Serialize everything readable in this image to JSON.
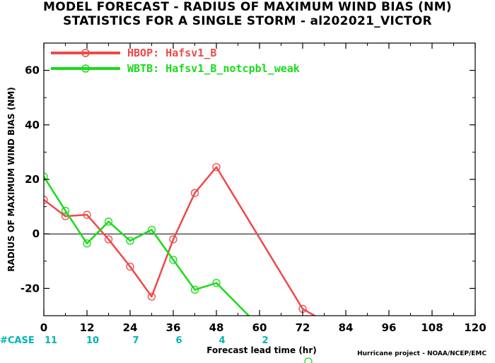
{
  "chart_data": {
    "type": "line",
    "title": "MODEL FORECAST - RADIUS OF MAXIMUM WIND BIAS (NM)",
    "subtitle": "STATISTICS FOR A SINGLE STORM - al202021_VICTOR",
    "xlabel": "Forecast lead time (hr)",
    "ylabel": "RADIUS OF MAXIMUM WIND BIAS (NM)",
    "xlim": [
      0,
      120
    ],
    "ylim": [
      -30,
      70
    ],
    "x_ticks": [
      "0",
      "12",
      "24",
      "36",
      "48",
      "60",
      "72",
      "84",
      "96",
      "108",
      "120"
    ],
    "y_ticks": [
      "60",
      "40",
      "20",
      "0",
      "-20"
    ],
    "zero_line": true,
    "legend_position": "top-left",
    "series": [
      {
        "name": "HBOP: Hafsv1_B",
        "color": "#f04848",
        "x": [
          0,
          6,
          12,
          18,
          24,
          30,
          36,
          42,
          48,
          72,
          78
        ],
        "y": [
          12.5,
          6.5,
          7,
          -2,
          -12,
          -23,
          -2,
          15,
          24.5,
          -27.5,
          -32
        ]
      },
      {
        "name": "WBTB: Hafsv1_B_notcpbl_weak",
        "color": "#18dc18",
        "x": [
          0,
          6,
          12,
          18,
          24,
          30,
          36,
          42,
          48,
          60
        ],
        "y": [
          21,
          8.5,
          -3.5,
          4.5,
          -2.5,
          1.5,
          -9.5,
          -20.5,
          -18,
          -34
        ]
      }
    ],
    "case_counts": {
      "label": "#CASE",
      "values": [
        {
          "x": 0,
          "text": "11"
        },
        {
          "x": 12,
          "text": "10"
        },
        {
          "x": 24,
          "text": "7"
        },
        {
          "x": 36,
          "text": "6"
        },
        {
          "x": 48,
          "text": "4"
        },
        {
          "x": 60,
          "text": "2"
        }
      ]
    },
    "credit": "Hurricane project - NOAA/NCEP/EMC"
  }
}
